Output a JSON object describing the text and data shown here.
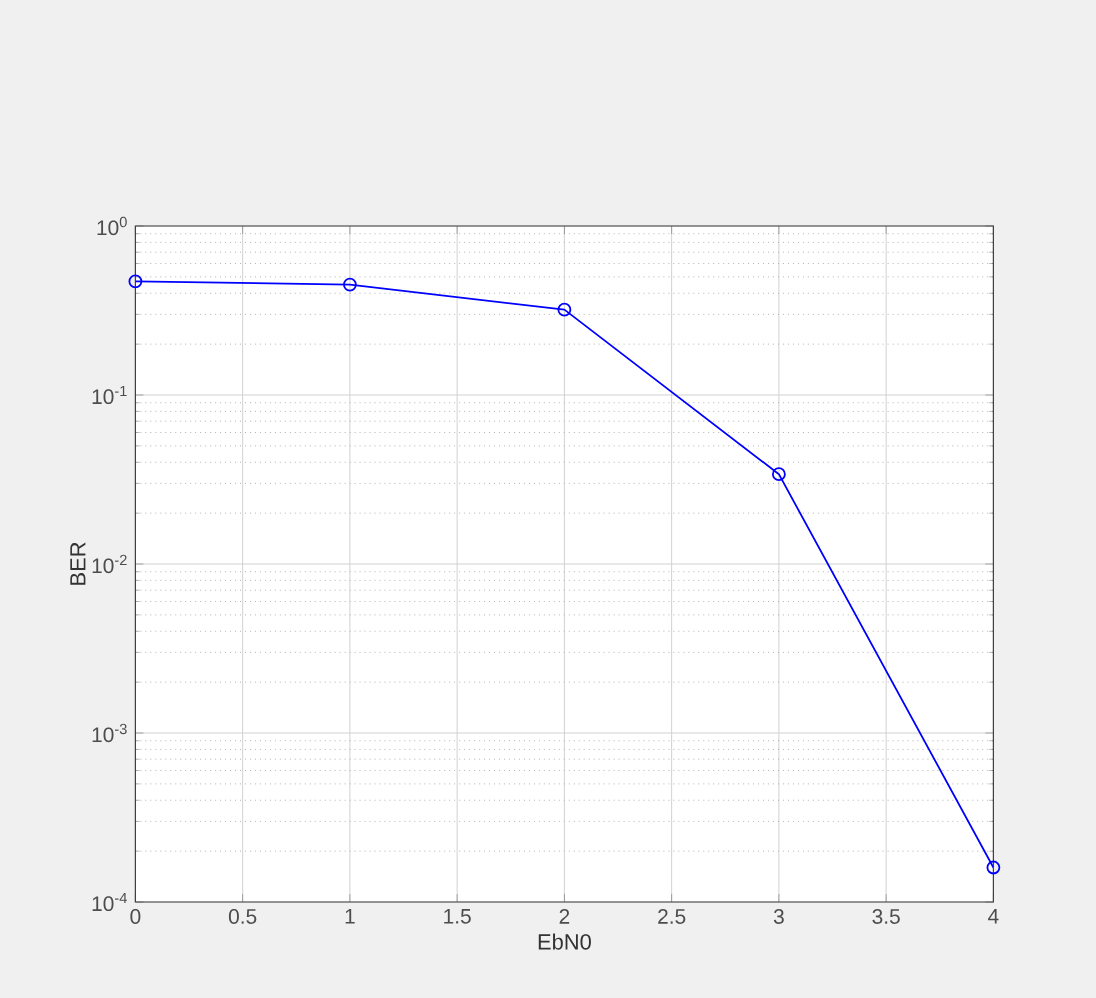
{
  "chart_data": {
    "type": "line",
    "xlabel": "EbN0",
    "ylabel": "BER",
    "x": [
      0,
      1,
      2,
      3,
      4
    ],
    "values": [
      0.47,
      0.45,
      0.32,
      0.034,
      0.00016
    ],
    "color": "#0000ff",
    "xlim": [
      0,
      4
    ],
    "xticks": [
      0,
      0.5,
      1,
      1.5,
      2,
      2.5,
      3,
      3.5,
      4
    ],
    "ylim": [
      0.0001,
      1
    ],
    "yticks": [
      {
        "value": 0.0001,
        "label": "10$^{-4}$"
      },
      {
        "value": 0.001,
        "label": "10$^{-3}$"
      },
      {
        "value": 0.01,
        "label": "10$^{-2}$"
      },
      {
        "value": 0.1,
        "label": "10$^{-1}$"
      },
      {
        "value": 1,
        "label": "10$^{0}$"
      }
    ],
    "log": "y",
    "grid": true,
    "marker": "circle",
    "line_style": "solid"
  }
}
